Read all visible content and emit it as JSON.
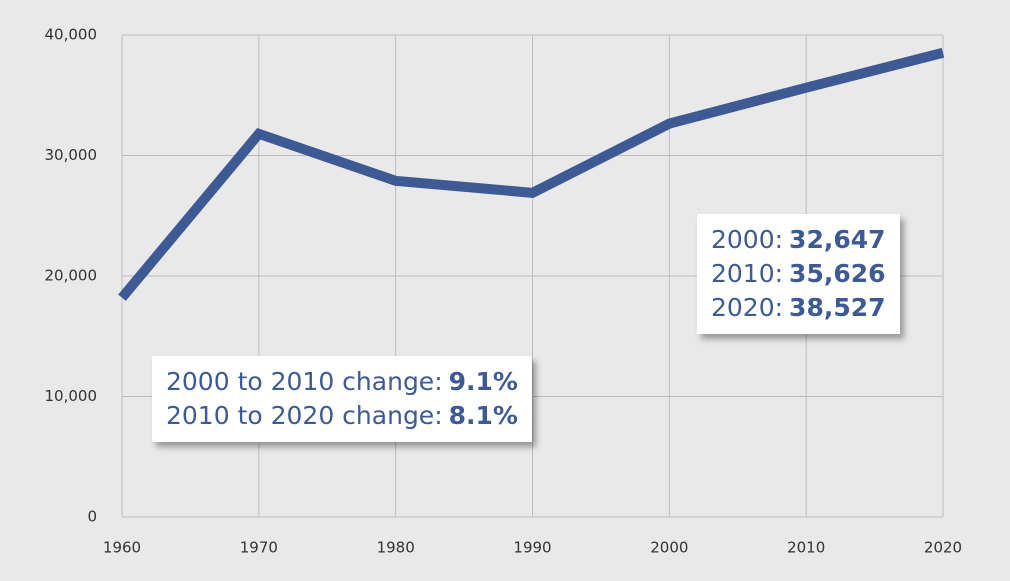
{
  "chart_data": {
    "type": "line",
    "x": [
      1960,
      1970,
      1980,
      1990,
      2000,
      2010,
      2020
    ],
    "series": [
      {
        "name": null,
        "color": "#3d5a95",
        "values": [
          18200,
          31800,
          27900,
          26900,
          32647,
          35626,
          38527
        ]
      }
    ],
    "xlim": [
      1960,
      2020
    ],
    "xticks": [
      1960,
      1970,
      1980,
      1990,
      2000,
      2010,
      2020
    ],
    "ylim": [
      0,
      40000
    ],
    "yticks": [
      0,
      {
        "value": 10000,
        "label": "10,000"
      },
      {
        "value": 20000,
        "label": "20,000"
      },
      {
        "value": 30000,
        "label": "30,000"
      },
      {
        "value": 40000,
        "label": "40,000"
      }
    ],
    "grid": true,
    "annotations": [
      {
        "lines": [
          {
            "label": "2000:",
            "value": "32,647"
          },
          {
            "label": "2010:",
            "value": "35,626"
          },
          {
            "label": "2020:",
            "value": "38,527"
          }
        ]
      },
      {
        "lines": [
          {
            "label": "2000 to 2010 change:",
            "value": "9.1%"
          },
          {
            "label": "2010 to 2020 change:",
            "value": "8.1%"
          }
        ]
      }
    ]
  }
}
